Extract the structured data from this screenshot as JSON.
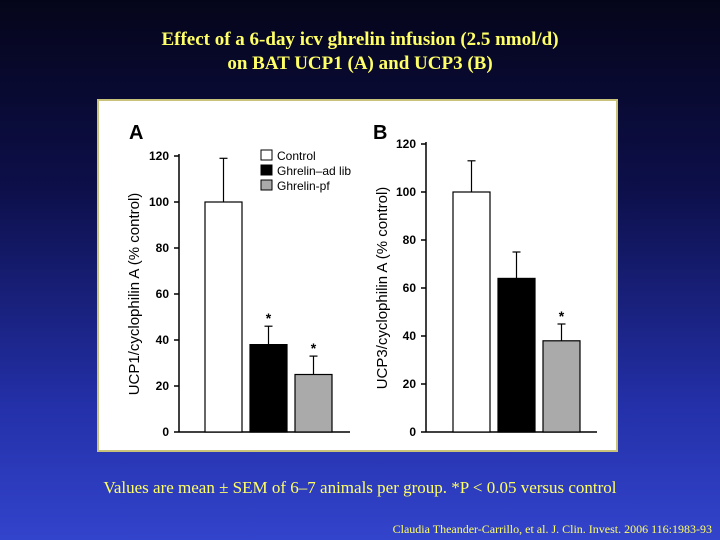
{
  "title": {
    "line1": "Effect of a 6-day icv ghrelin infusion (2.5 nmol/d)",
    "line2": "on BAT UCP1 (A) and UCP3 (B)"
  },
  "footnote": "Values are mean ± SEM of 6–7 animals per group. *P < 0.05 versus control",
  "citation": "Claudia Theander-Carrillo, et al. J. Clin. Invest. 2006 116:1983-93",
  "colors": {
    "title_text": "#ffff66",
    "control": "#ffffff",
    "ghrelin_ad_lib": "#000000",
    "ghrelin_pf": "#aaaaaa"
  },
  "chart_data": [
    {
      "type": "bar",
      "panel_label": "A",
      "ylabel": "UCP1/cyclophilin A (% control)",
      "ylim": [
        0,
        120
      ],
      "yticks": [
        0,
        20,
        40,
        60,
        80,
        100,
        120
      ],
      "legend": [
        "Control",
        "Ghrelin–ad lib",
        "Ghrelin-pf"
      ],
      "legend_position": "top-right",
      "bars": [
        {
          "group": "Control",
          "value": 100,
          "error": 19,
          "sig": ""
        },
        {
          "group": "Ghrelin–ad lib",
          "value": 38,
          "error": 8,
          "sig": "*"
        },
        {
          "group": "Ghrelin-pf",
          "value": 25,
          "error": 8,
          "sig": "*"
        }
      ]
    },
    {
      "type": "bar",
      "panel_label": "B",
      "ylabel": "UCP3/cyclophilin A (% control)",
      "ylim": [
        0,
        120
      ],
      "yticks": [
        0,
        20,
        40,
        60,
        80,
        100,
        120
      ],
      "bars": [
        {
          "group": "Control",
          "value": 100,
          "error": 13,
          "sig": ""
        },
        {
          "group": "Ghrelin–ad lib",
          "value": 64,
          "error": 11,
          "sig": ""
        },
        {
          "group": "Ghrelin-pf",
          "value": 38,
          "error": 7,
          "sig": "*"
        }
      ]
    }
  ]
}
